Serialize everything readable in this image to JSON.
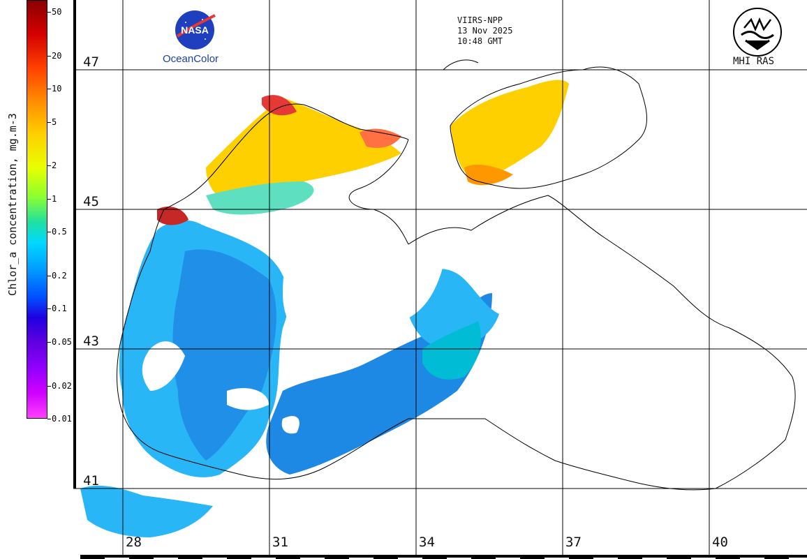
{
  "header": {
    "sensor": "VIIRS-NPP",
    "date": "13 Nov 2025",
    "time": "10:48 GMT",
    "left_logo_text": "OceanColor",
    "nasa_wordmark": "NASA",
    "right_logo_text": "MHI RAS"
  },
  "colorbar": {
    "title": "Chlor_a concentration, mg.m-3",
    "ticks": [
      "50",
      "20",
      "10",
      "5",
      "2",
      "1",
      "0.5",
      "0.2",
      "0.1",
      "0.05",
      "0.02",
      "0.01"
    ],
    "tick_values": [
      50,
      20,
      10,
      5,
      2,
      1,
      0.5,
      0.2,
      0.1,
      0.05,
      0.02,
      0.01
    ],
    "range": [
      0.01,
      64
    ],
    "scale": "log"
  },
  "map": {
    "latitudes": [
      "47",
      "45",
      "43",
      "41"
    ],
    "longitudes": [
      "28",
      "31",
      "34",
      "37",
      "40"
    ],
    "lat_values": [
      47,
      45,
      43,
      41
    ],
    "lon_values": [
      28,
      31,
      34,
      37,
      40
    ],
    "colors": {
      "coastline": "#000000",
      "grid": "#000000",
      "background": "#ffffff",
      "high_chl": "#ff4000",
      "mid_chl": "#ffd000",
      "low_chl": "#00b0ff",
      "open_sea": "#1e90ff"
    }
  }
}
